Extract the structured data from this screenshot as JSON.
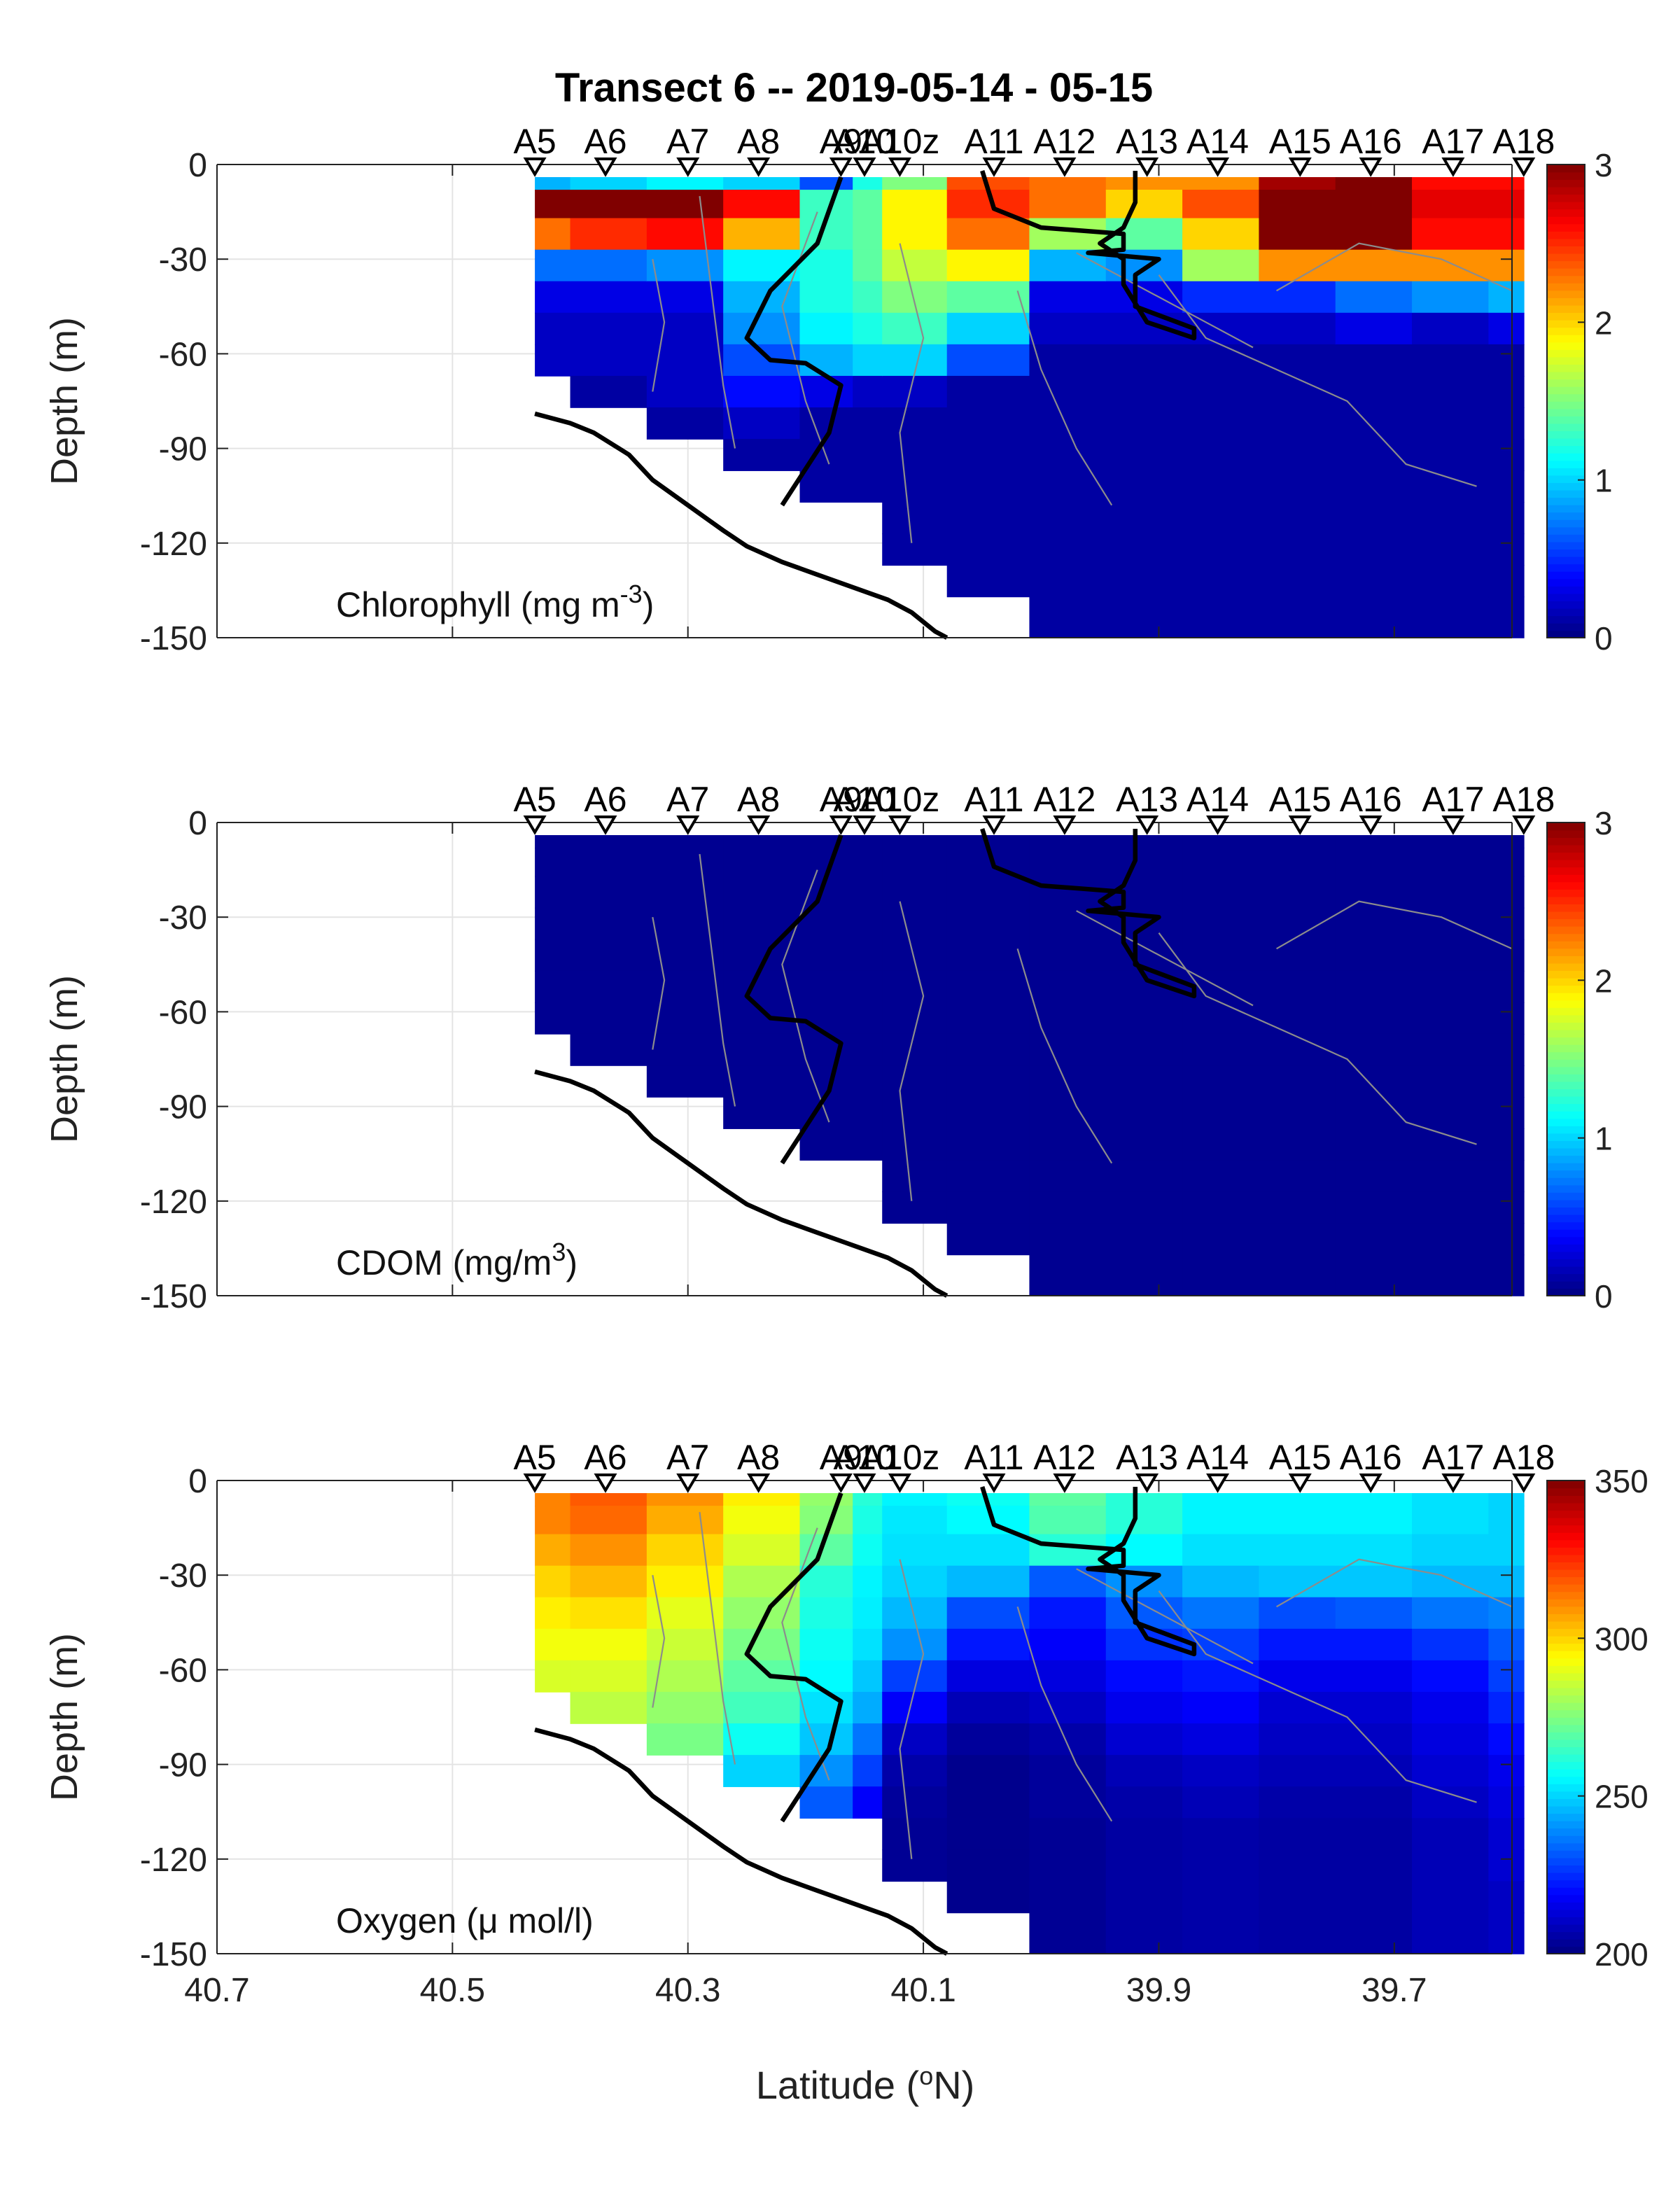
{
  "figure": {
    "title": "Transect 6 -- 2019-05-14 - 05-15",
    "xlabel": "Latitude (°N)",
    "xlabel_parts": {
      "pre": "Latitude (",
      "sup": "o",
      "post": "N)"
    }
  },
  "chart_data": [
    {
      "type": "heatmap",
      "label": "Chlorophyll (mg m-3)",
      "label_parts": {
        "pre": "Chlorophyll (mg m",
        "sup": "-3",
        "post": ")"
      },
      "ylabel": "Depth (m)",
      "xlim": [
        40.7,
        39.6
      ],
      "ylim": [
        -150,
        0
      ],
      "xticks": [
        "40.7",
        "40.5",
        "40.3",
        "40.1",
        "39.9",
        "39.7"
      ],
      "yticks": [
        "0",
        "-30",
        "-60",
        "-90",
        "-120",
        "-150"
      ],
      "colorbar": {
        "min": 0,
        "max": 3,
        "ticks": [
          "0",
          "1",
          "2",
          "3"
        ]
      },
      "colormap": "jet",
      "grid": true,
      "stations": [
        "A5",
        "A6",
        "A7",
        "A8",
        "A9",
        "A10",
        "A10z",
        "A11",
        "A12",
        "A13",
        "A14",
        "A15",
        "A16",
        "A17",
        "A18"
      ],
      "station_lats": [
        40.43,
        40.37,
        40.3,
        40.24,
        40.17,
        40.15,
        40.12,
        40.04,
        39.98,
        39.91,
        39.85,
        39.78,
        39.72,
        39.65,
        39.59
      ],
      "depth_levels": [
        -4,
        -12,
        -22,
        -32,
        -42,
        -52,
        -62,
        -72,
        -82,
        -92,
        -102,
        -112,
        -122,
        -132,
        -142
      ],
      "values": [
        [
          0.9,
          1.0,
          1.1,
          1.0,
          0.6,
          1.2,
          1.5,
          2.4,
          2.3,
          2.2,
          2.2,
          2.9,
          3.0,
          2.6,
          2.6
        ],
        [
          3.0,
          3.0,
          3.0,
          2.6,
          1.3,
          1.4,
          1.9,
          2.5,
          2.3,
          2.0,
          2.4,
          3.0,
          3.0,
          2.7,
          2.7
        ],
        [
          2.3,
          2.5,
          2.6,
          2.1,
          1.3,
          1.4,
          1.9,
          2.3,
          1.6,
          1.4,
          2.0,
          3.0,
          3.0,
          2.6,
          2.6
        ],
        [
          0.7,
          0.7,
          0.8,
          1.1,
          1.2,
          1.4,
          1.7,
          1.9,
          0.9,
          0.8,
          1.6,
          2.2,
          2.2,
          2.2,
          2.2
        ],
        [
          0.3,
          0.3,
          0.3,
          0.9,
          1.2,
          1.3,
          1.5,
          1.4,
          0.3,
          0.3,
          0.5,
          0.5,
          0.7,
          0.8,
          0.9
        ],
        [
          0.2,
          0.2,
          0.2,
          0.8,
          1.1,
          1.2,
          1.3,
          1.0,
          0.2,
          0.2,
          0.2,
          0.2,
          0.3,
          0.2,
          0.3
        ],
        [
          0.2,
          0.2,
          0.2,
          0.6,
          0.9,
          1.0,
          1.0,
          0.6,
          0.1,
          0.1,
          0.1,
          0.1,
          0.1,
          0.1,
          0.1
        ],
        [
          null,
          0.1,
          0.2,
          0.4,
          0.3,
          0.2,
          0.2,
          0.1,
          0.1,
          0.1,
          0.1,
          0.1,
          0.1,
          0.1,
          0.1
        ],
        [
          null,
          null,
          0.1,
          0.2,
          0.1,
          0.1,
          0.1,
          0.1,
          0.1,
          0.1,
          0.1,
          0.1,
          0.1,
          0.1,
          0.1
        ],
        [
          null,
          null,
          null,
          0.1,
          0.1,
          0.1,
          0.1,
          0.1,
          0.1,
          0.1,
          0.1,
          0.1,
          0.1,
          0.1,
          0.1
        ],
        [
          null,
          null,
          null,
          null,
          0.1,
          0.1,
          0.1,
          0.1,
          0.1,
          0.1,
          0.1,
          0.1,
          0.1,
          0.1,
          0.1
        ],
        [
          null,
          null,
          null,
          null,
          null,
          null,
          0.1,
          0.1,
          0.1,
          0.1,
          0.1,
          0.1,
          0.1,
          0.1,
          0.1
        ],
        [
          null,
          null,
          null,
          null,
          null,
          null,
          0.1,
          0.1,
          0.1,
          0.1,
          0.1,
          0.1,
          0.1,
          0.1,
          0.1
        ],
        [
          null,
          null,
          null,
          null,
          null,
          null,
          null,
          0.1,
          0.1,
          0.1,
          0.1,
          0.1,
          0.1,
          0.1,
          0.1
        ],
        [
          null,
          null,
          null,
          null,
          null,
          null,
          null,
          null,
          0.1,
          0.1,
          0.1,
          0.1,
          0.1,
          0.1,
          0.1
        ]
      ]
    },
    {
      "type": "heatmap",
      "label": "CDOM (mg/m3)",
      "label_parts": {
        "pre": "CDOM (mg/m",
        "sup": "3",
        "post": ")"
      },
      "ylabel": "Depth (m)",
      "xlim": [
        40.7,
        39.6
      ],
      "ylim": [
        -150,
        0
      ],
      "xticks": [
        "40.7",
        "40.5",
        "40.3",
        "40.1",
        "39.9",
        "39.7"
      ],
      "yticks": [
        "0",
        "-30",
        "-60",
        "-90",
        "-120",
        "-150"
      ],
      "colorbar": {
        "min": 0,
        "max": 3,
        "ticks": [
          "0",
          "1",
          "2",
          "3"
        ]
      },
      "colormap": "jet",
      "grid": true,
      "stations": [
        "A5",
        "A6",
        "A7",
        "A8",
        "A9",
        "A10",
        "A10z",
        "A11",
        "A12",
        "A13",
        "A14",
        "A15",
        "A16",
        "A17",
        "A18"
      ],
      "station_lats": [
        40.43,
        40.37,
        40.3,
        40.24,
        40.17,
        40.15,
        40.12,
        40.04,
        39.98,
        39.91,
        39.85,
        39.78,
        39.72,
        39.65,
        39.59
      ],
      "depth_levels": [
        -4,
        -12,
        -22,
        -32,
        -42,
        -52,
        -62,
        -72,
        -82,
        -92,
        -102,
        -112,
        -122,
        -132,
        -142
      ],
      "values": [
        [
          0.05,
          0.05,
          0.05,
          0.05,
          0.05,
          0.05,
          0.05,
          0.05,
          0.05,
          0.05,
          0.05,
          0.05,
          0.05,
          0.05,
          0.05
        ],
        [
          0.05,
          0.05,
          0.05,
          0.05,
          0.05,
          0.05,
          0.05,
          0.05,
          0.05,
          0.05,
          0.05,
          0.05,
          0.05,
          0.05,
          0.05
        ],
        [
          0.05,
          0.05,
          0.05,
          0.05,
          0.05,
          0.05,
          0.05,
          0.05,
          0.05,
          0.05,
          0.05,
          0.05,
          0.05,
          0.05,
          0.05
        ],
        [
          0.05,
          0.05,
          0.05,
          0.05,
          0.05,
          0.05,
          0.05,
          0.05,
          0.05,
          0.05,
          0.05,
          0.05,
          0.05,
          0.05,
          0.05
        ],
        [
          0.05,
          0.05,
          0.05,
          0.05,
          0.05,
          0.05,
          0.05,
          0.05,
          0.05,
          0.05,
          0.05,
          0.05,
          0.05,
          0.05,
          0.05
        ],
        [
          0.05,
          0.05,
          0.05,
          0.05,
          0.05,
          0.05,
          0.05,
          0.05,
          0.05,
          0.05,
          0.05,
          0.05,
          0.05,
          0.05,
          0.05
        ],
        [
          0.05,
          0.05,
          0.05,
          0.05,
          0.05,
          0.05,
          0.05,
          0.05,
          0.05,
          0.05,
          0.05,
          0.05,
          0.05,
          0.05,
          0.05
        ],
        [
          null,
          0.05,
          0.05,
          0.05,
          0.05,
          0.05,
          0.05,
          0.05,
          0.05,
          0.05,
          0.05,
          0.05,
          0.05,
          0.05,
          0.05
        ],
        [
          null,
          null,
          0.05,
          0.05,
          0.05,
          0.05,
          0.05,
          0.05,
          0.05,
          0.05,
          0.05,
          0.05,
          0.05,
          0.05,
          0.05
        ],
        [
          null,
          null,
          null,
          0.05,
          0.05,
          0.05,
          0.05,
          0.05,
          0.05,
          0.05,
          0.05,
          0.05,
          0.05,
          0.05,
          0.05
        ],
        [
          null,
          null,
          null,
          null,
          0.05,
          0.05,
          0.05,
          0.05,
          0.05,
          0.05,
          0.05,
          0.05,
          0.05,
          0.05,
          0.05
        ],
        [
          null,
          null,
          null,
          null,
          null,
          null,
          0.05,
          0.05,
          0.05,
          0.05,
          0.05,
          0.05,
          0.05,
          0.05,
          0.05
        ],
        [
          null,
          null,
          null,
          null,
          null,
          null,
          0.05,
          0.05,
          0.05,
          0.05,
          0.05,
          0.05,
          0.05,
          0.05,
          0.05
        ],
        [
          null,
          null,
          null,
          null,
          null,
          null,
          null,
          0.05,
          0.05,
          0.05,
          0.05,
          0.05,
          0.05,
          0.05,
          0.05
        ],
        [
          null,
          null,
          null,
          null,
          null,
          null,
          null,
          null,
          0.05,
          0.05,
          0.05,
          0.05,
          0.05,
          0.05,
          0.05
        ]
      ]
    },
    {
      "type": "heatmap",
      "label": "Oxygen (μ mol/l)",
      "label_parts": {
        "pre": "Oxygen (μ mol/l)",
        "sup": "",
        "post": ""
      },
      "ylabel": "Depth (m)",
      "xlim": [
        40.7,
        39.6
      ],
      "ylim": [
        -150,
        0
      ],
      "xticks": [
        "40.7",
        "40.5",
        "40.3",
        "40.1",
        "39.9",
        "39.7"
      ],
      "yticks": [
        "0",
        "-30",
        "-60",
        "-90",
        "-120",
        "-150"
      ],
      "colorbar": {
        "min": 200,
        "max": 350,
        "ticks": [
          "200",
          "250",
          "300",
          "350"
        ]
      },
      "colormap": "jet",
      "grid": true,
      "stations": [
        "A5",
        "A6",
        "A7",
        "A8",
        "A9",
        "A10",
        "A10z",
        "A11",
        "A12",
        "A13",
        "A14",
        "A15",
        "A16",
        "A17",
        "A18"
      ],
      "station_lats": [
        40.43,
        40.37,
        40.3,
        40.24,
        40.17,
        40.15,
        40.12,
        40.04,
        39.98,
        39.91,
        39.85,
        39.78,
        39.72,
        39.65,
        39.59
      ],
      "depth_levels": [
        -4,
        -12,
        -22,
        -32,
        -42,
        -52,
        -62,
        -72,
        -82,
        -92,
        -102,
        -112,
        -122,
        -132,
        -142
      ],
      "values": [
        [
          312,
          318,
          310,
          296,
          278,
          262,
          255,
          258,
          270,
          262,
          255,
          255,
          255,
          252,
          250
        ],
        [
          312,
          316,
          306,
          292,
          276,
          260,
          253,
          256,
          268,
          262,
          255,
          255,
          255,
          252,
          250
        ],
        [
          306,
          310,
          300,
          288,
          270,
          258,
          252,
          252,
          262,
          256,
          252,
          252,
          252,
          250,
          250
        ],
        [
          300,
          304,
          296,
          282,
          262,
          255,
          250,
          246,
          232,
          240,
          246,
          248,
          248,
          246,
          246
        ],
        [
          296,
          298,
          290,
          278,
          260,
          254,
          246,
          230,
          222,
          232,
          236,
          230,
          232,
          236,
          238
        ],
        [
          292,
          292,
          286,
          274,
          258,
          252,
          240,
          222,
          218,
          226,
          228,
          222,
          222,
          226,
          232
        ],
        [
          288,
          288,
          282,
          270,
          256,
          248,
          228,
          214,
          214,
          220,
          222,
          216,
          216,
          220,
          228
        ],
        [
          null,
          284,
          278,
          266,
          252,
          244,
          218,
          208,
          210,
          216,
          218,
          212,
          212,
          216,
          224
        ],
        [
          null,
          null,
          274,
          258,
          248,
          236,
          210,
          204,
          206,
          212,
          214,
          210,
          210,
          214,
          220
        ],
        [
          null,
          null,
          null,
          250,
          240,
          228,
          206,
          202,
          204,
          208,
          210,
          208,
          208,
          212,
          216
        ],
        [
          null,
          null,
          null,
          null,
          232,
          218,
          204,
          202,
          204,
          206,
          208,
          206,
          206,
          210,
          214
        ],
        [
          null,
          null,
          null,
          null,
          null,
          null,
          203,
          202,
          203,
          205,
          206,
          205,
          205,
          208,
          212
        ],
        [
          null,
          null,
          null,
          null,
          null,
          null,
          203,
          202,
          203,
          205,
          206,
          205,
          205,
          208,
          212
        ],
        [
          null,
          null,
          null,
          null,
          null,
          null,
          null,
          202,
          203,
          205,
          206,
          205,
          205,
          208,
          210
        ],
        [
          null,
          null,
          null,
          null,
          null,
          null,
          null,
          null,
          203,
          205,
          206,
          205,
          205,
          208,
          210
        ]
      ]
    }
  ]
}
